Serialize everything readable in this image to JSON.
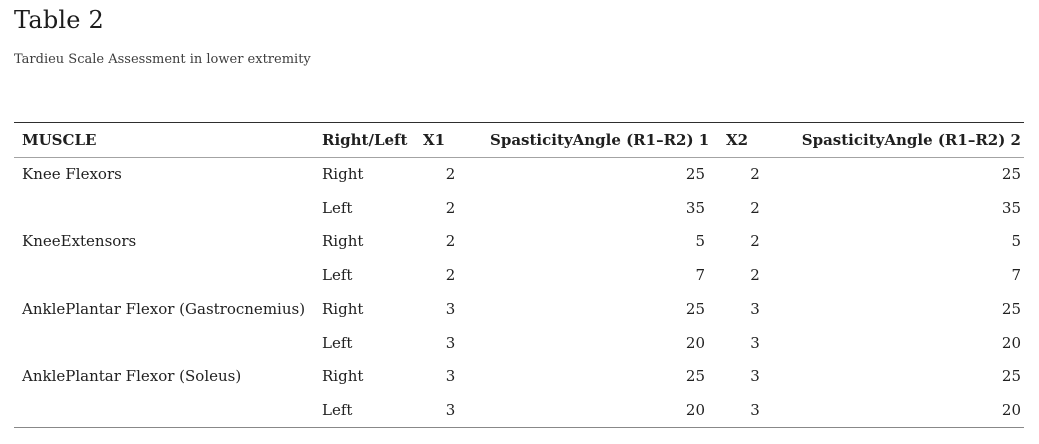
{
  "page": {
    "title": "Table 2",
    "subtitle": "Tardieu Scale Assessment in lower extremity"
  },
  "table": {
    "columns": [
      "MUSCLE",
      "Right/Left",
      "X1",
      "SpasticityAngle (R1–R2) 1",
      "X2",
      "SpasticityAngle (R1–R2) 2"
    ],
    "rows": [
      [
        "Knee Flexors",
        "Right",
        "2",
        "25",
        "2",
        "25"
      ],
      [
        "",
        "Left",
        "2",
        "35",
        "2",
        "35"
      ],
      [
        "KneeExtensors",
        "Right",
        "2",
        "5",
        "2",
        "5"
      ],
      [
        "",
        "Left",
        "2",
        "7",
        "2",
        "7"
      ],
      [
        "AnklePlantar Flexor (Gastrocnemius)",
        "Right",
        "3",
        "25",
        "3",
        "25"
      ],
      [
        "",
        "Left",
        "3",
        "20",
        "3",
        "20"
      ],
      [
        "AnklePlantar Flexor (Soleus)",
        "Right",
        "3",
        "25",
        "3",
        "25"
      ],
      [
        "",
        "Left",
        "3",
        "20",
        "3",
        "20"
      ]
    ]
  },
  "colors": {
    "text": "#212121",
    "title_text": "#1c1c1c",
    "subtitle_text": "#3d3d3d",
    "border_top": "#2e2e2e",
    "border_header": "#a3a3a3",
    "border_bottom": "#888888",
    "background": "#ffffff"
  }
}
